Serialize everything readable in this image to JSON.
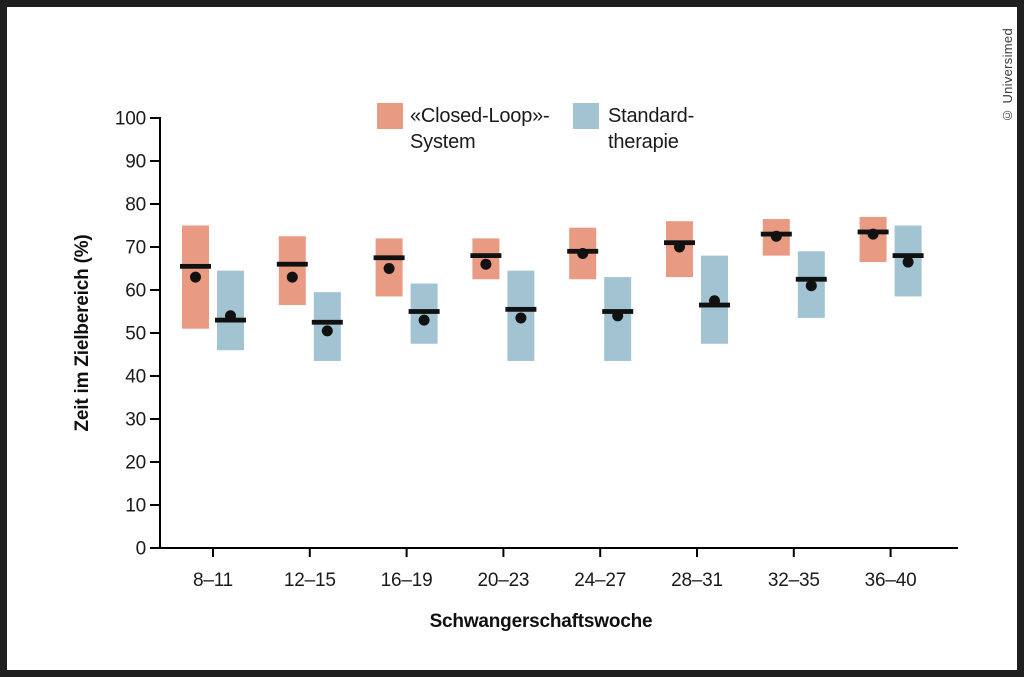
{
  "credit": "© Universimed",
  "colors": {
    "closed_loop": "#E99A82",
    "standard_therapy": "#A2C4D2",
    "marker": "#111111",
    "axis": "#000000",
    "text": "#1A1A1A",
    "frame": "#1F1F1F"
  },
  "legend": [
    {
      "lines": [
        "«Closed-Loop»-",
        "System"
      ],
      "series_index": 0
    },
    {
      "lines": [
        "Standard-",
        "therapie"
      ],
      "series_index": 1
    }
  ],
  "chart_data": {
    "type": "bar",
    "subtype": "floating-range-bars-with-median-line-and-mean-dot",
    "title": "",
    "xlabel": "Schwangerschaftswoche",
    "ylabel": "Zeit im Zielbereich (%)",
    "ylim": [
      0,
      100
    ],
    "yticks": [
      0,
      10,
      20,
      30,
      40,
      50,
      60,
      70,
      80,
      90,
      100
    ],
    "grid": false,
    "legend_position": "top",
    "categories": [
      "8–11",
      "12–15",
      "16–19",
      "20–23",
      "24–27",
      "28–31",
      "32–35",
      "36–40"
    ],
    "series": [
      {
        "name": "«Closed-Loop»-System",
        "color": "#E99A82",
        "range_low": [
          51,
          56.5,
          58.5,
          62.5,
          62.5,
          63,
          68,
          66.5
        ],
        "range_high": [
          75,
          72.5,
          72,
          72,
          74.5,
          76,
          76.5,
          77
        ],
        "median": [
          65.5,
          66,
          67.5,
          68,
          69,
          71,
          73,
          73.5
        ],
        "mean": [
          63,
          63,
          65,
          66,
          68.5,
          70,
          72.5,
          73
        ]
      },
      {
        "name": "Standard-therapie",
        "color": "#A2C4D2",
        "range_low": [
          46,
          43.5,
          47.5,
          43.5,
          43.5,
          47.5,
          53.5,
          58.5
        ],
        "range_high": [
          64.5,
          59.5,
          61.5,
          64.5,
          63,
          68,
          69,
          75
        ],
        "median": [
          53,
          52.5,
          55,
          55.5,
          55,
          56.5,
          62.5,
          68
        ],
        "mean": [
          54,
          50.5,
          53,
          53.5,
          54,
          57.5,
          61,
          66.5
        ]
      }
    ]
  }
}
